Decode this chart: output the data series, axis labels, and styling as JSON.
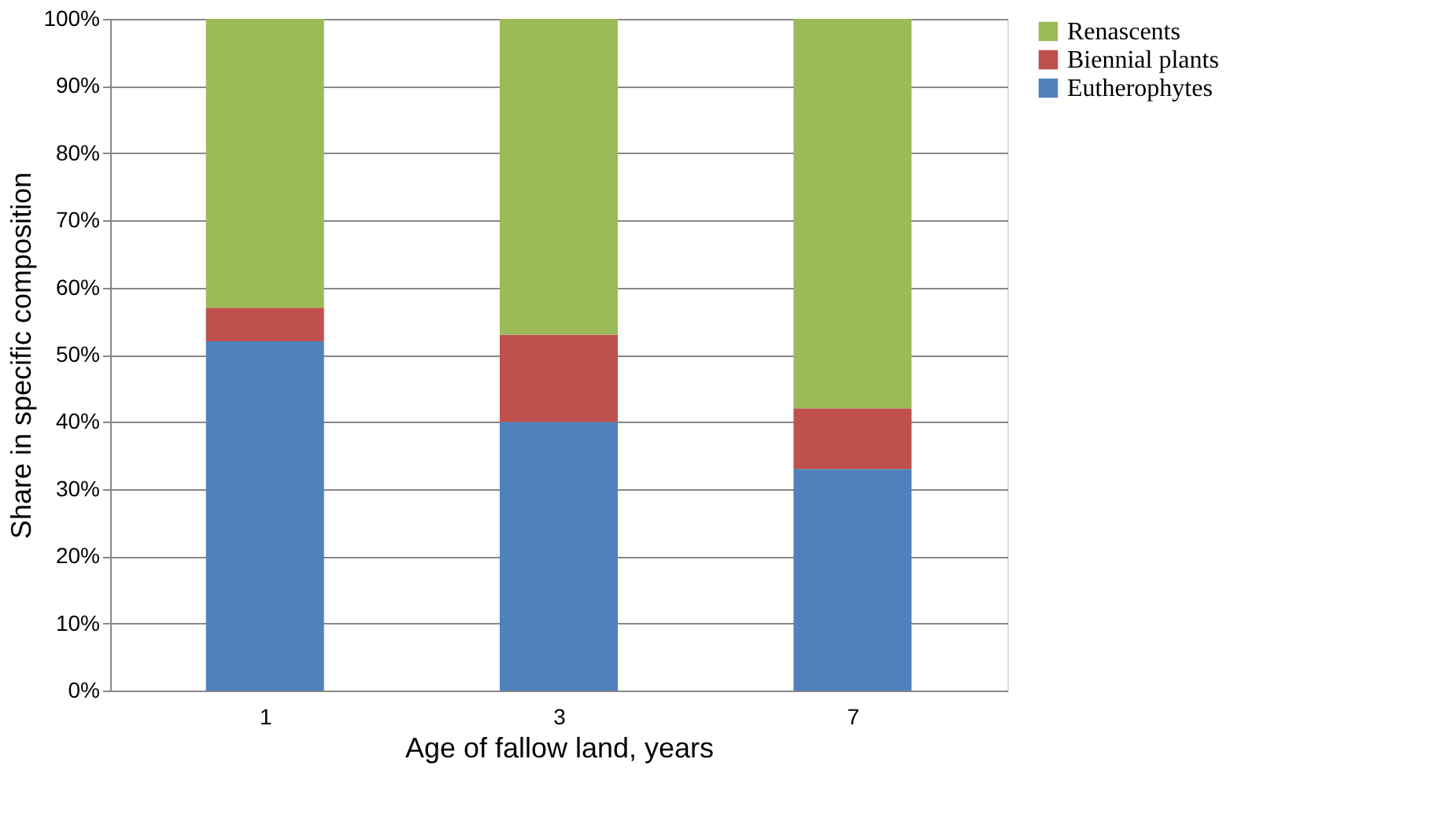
{
  "chart_data": {
    "type": "bar",
    "stacked": true,
    "xlabel": "Age of fallow land, years",
    "ylabel": "Share in specific composition",
    "categories": [
      "1",
      "3",
      "7"
    ],
    "series": [
      {
        "name": "Eutherophytes",
        "color": "#4f81bd",
        "values": [
          52,
          40,
          33
        ]
      },
      {
        "name": "Biennial plants",
        "color": "#c0504d",
        "values": [
          5,
          13,
          9
        ]
      },
      {
        "name": "Renascents",
        "color": "#9bbb59",
        "values": [
          43,
          47,
          58
        ]
      }
    ],
    "ylim": [
      0,
      100
    ],
    "yticks": [
      {
        "value": 0,
        "label": "0%"
      },
      {
        "value": 10,
        "label": "10%"
      },
      {
        "value": 20,
        "label": "20%"
      },
      {
        "value": 30,
        "label": "30%"
      },
      {
        "value": 40,
        "label": "40%"
      },
      {
        "value": 50,
        "label": "50%"
      },
      {
        "value": 60,
        "label": "60%"
      },
      {
        "value": 70,
        "label": "70%"
      },
      {
        "value": 80,
        "label": "80%"
      },
      {
        "value": 90,
        "label": "90%"
      },
      {
        "value": 100,
        "label": "100%"
      }
    ],
    "grid": "y",
    "legend": "right"
  }
}
